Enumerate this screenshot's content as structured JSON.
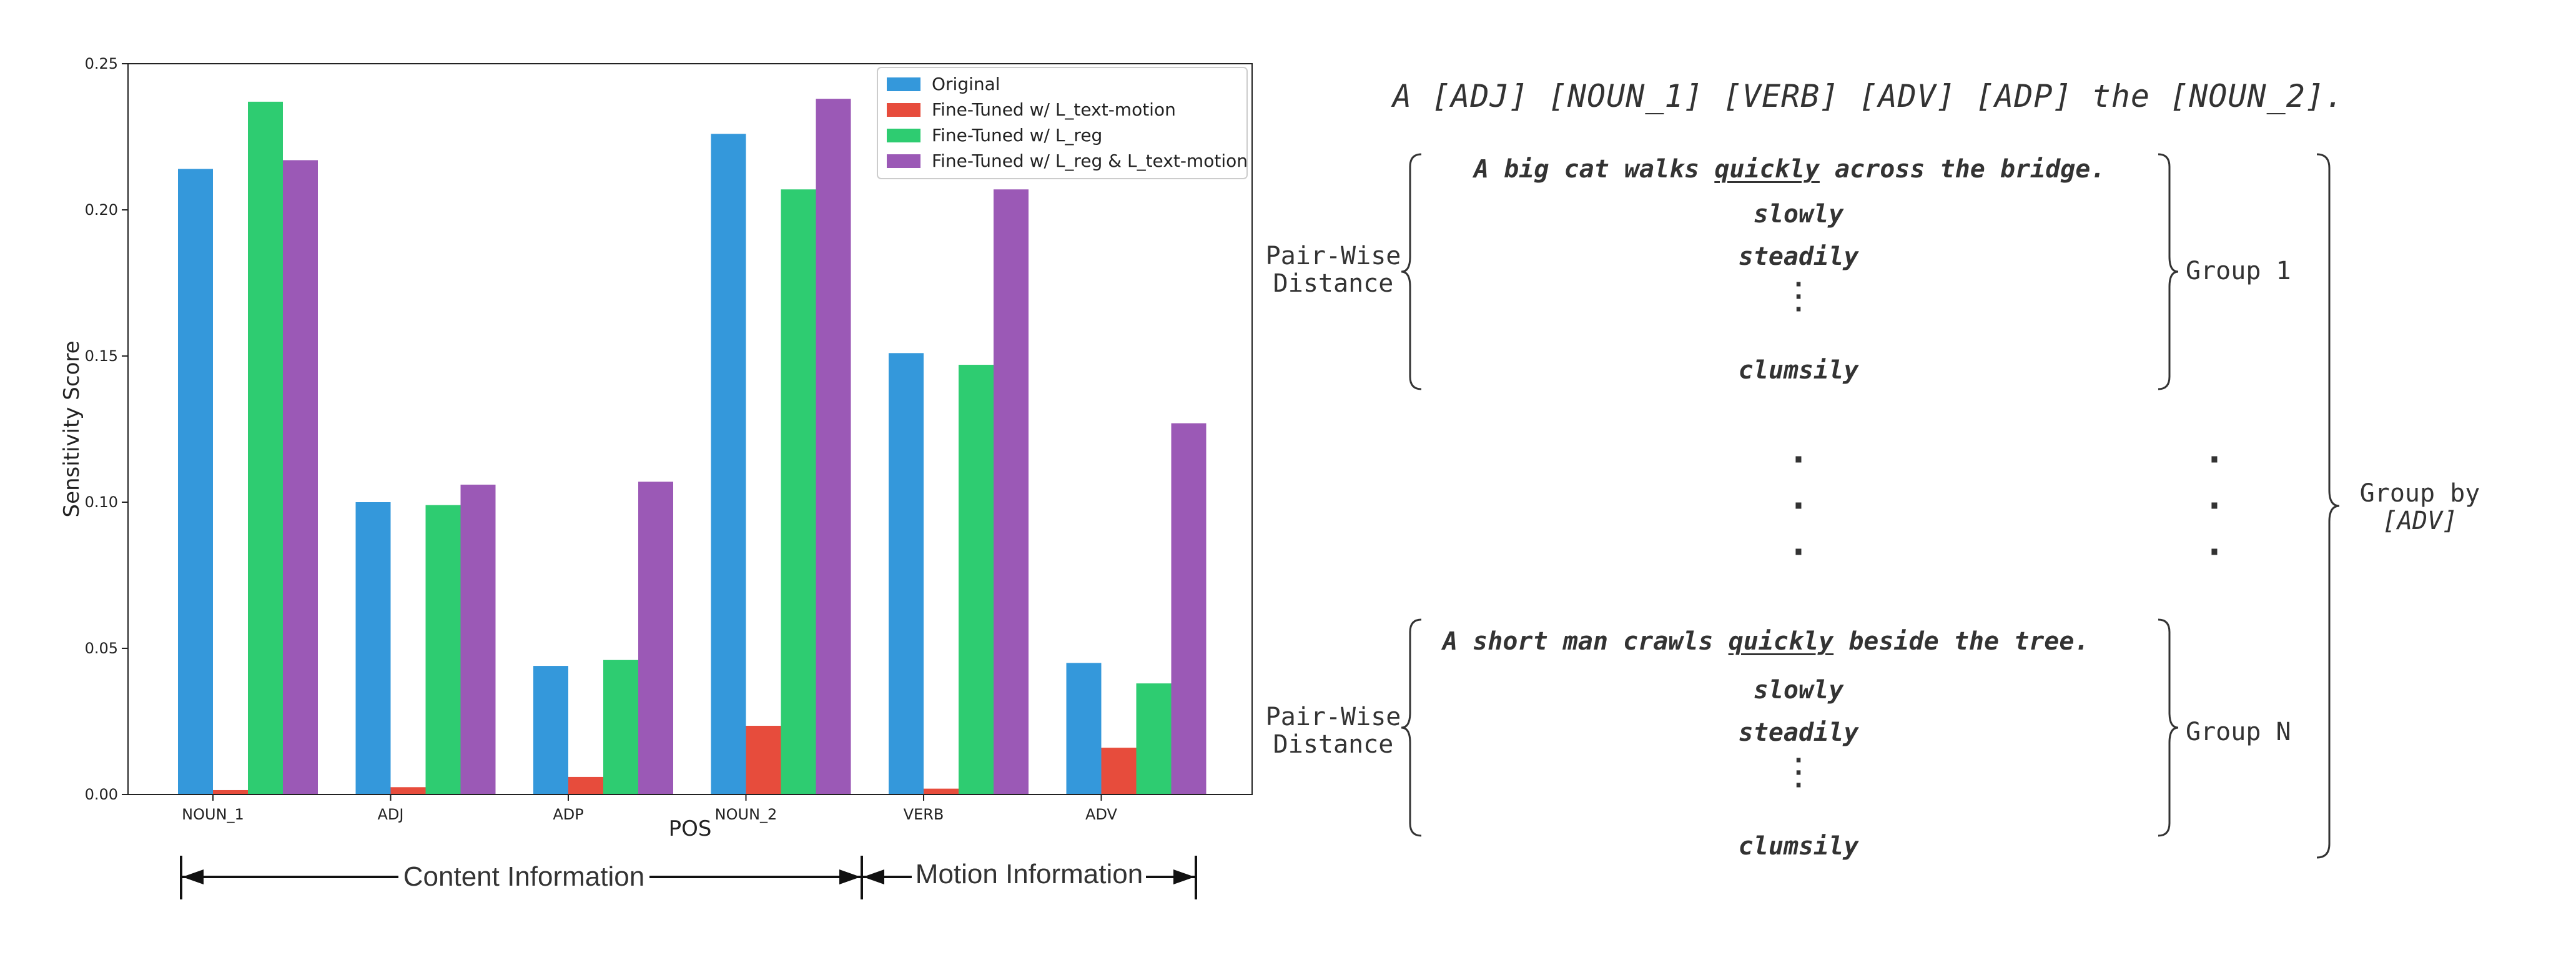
{
  "chart_data": {
    "type": "bar",
    "xlabel": "POS",
    "ylabel": "Sensitivity Score",
    "ylim": [
      0,
      0.25
    ],
    "yticks": [
      "0.00",
      "0.05",
      "0.10",
      "0.15",
      "0.20",
      "0.25"
    ],
    "categories": [
      "NOUN_1",
      "ADJ",
      "ADP",
      "NOUN_2",
      "VERB",
      "ADV"
    ],
    "legend_position": "upper right",
    "series": [
      {
        "name": "Original",
        "color": "#3498db",
        "values": [
          0.214,
          0.1,
          0.044,
          0.226,
          0.151,
          0.045
        ]
      },
      {
        "name": "Fine-Tuned w/ L_text-motion",
        "color": "#e74c3c",
        "values": [
          0.0015,
          0.0025,
          0.006,
          0.0235,
          0.002,
          0.016
        ]
      },
      {
        "name": "Fine-Tuned w/ L_reg",
        "color": "#2ecc71",
        "values": [
          0.237,
          0.099,
          0.046,
          0.207,
          0.147,
          0.038
        ]
      },
      {
        "name": "Fine-Tuned w/ L_reg & L_text-motion",
        "color": "#9b59b6",
        "values": [
          0.217,
          0.106,
          0.107,
          0.238,
          0.207,
          0.127
        ]
      }
    ],
    "sections": [
      {
        "label": "Content Information"
      },
      {
        "label": "Motion Information"
      }
    ]
  },
  "diagram": {
    "template": "A [ADJ] [NOUN_1] [VERB] [ADV] [ADP] the [NOUN_2].",
    "group1": {
      "sentence_pre": "A big cat walks ",
      "keyword": "quickly",
      "sentence_post": " across the bridge.",
      "alternatives": [
        "slowly",
        "steadily"
      ],
      "last": "clumsily",
      "left_label": "Pair-Wise Distance",
      "right_label": "Group 1"
    },
    "groupN": {
      "sentence_pre": "A short man crawls ",
      "keyword": "quickly",
      "sentence_post": " beside the tree.",
      "alternatives": [
        "slowly",
        "steadily"
      ],
      "last": "clumsily",
      "left_label": "Pair-Wise Distance",
      "right_label": "Group N"
    },
    "outer_label_line1": "Group by",
    "outer_label_line2": "[ADV]"
  }
}
